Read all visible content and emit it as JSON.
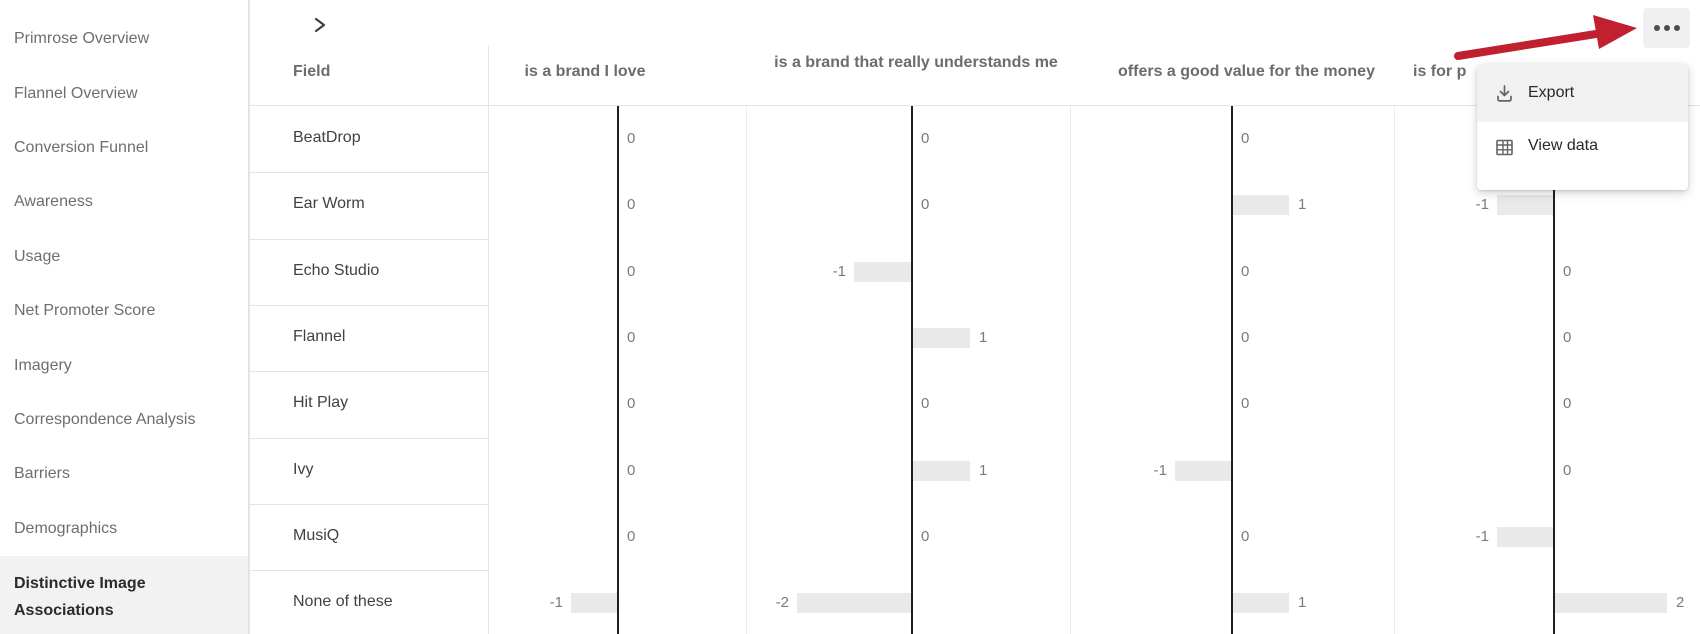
{
  "sidebar": {
    "items": [
      {
        "label": "Primrose Overview",
        "selected": false
      },
      {
        "label": "Flannel Overview",
        "selected": false
      },
      {
        "label": "Conversion Funnel",
        "selected": false
      },
      {
        "label": "Awareness",
        "selected": false
      },
      {
        "label": "Usage",
        "selected": false
      },
      {
        "label": "Net Promoter Score",
        "selected": false
      },
      {
        "label": "Imagery",
        "selected": false
      },
      {
        "label": "Correspondence Analysis",
        "selected": false
      },
      {
        "label": "Barriers",
        "selected": false
      },
      {
        "label": "Demographics",
        "selected": false
      },
      {
        "label": "Distinctive Image Associations",
        "selected": true
      }
    ]
  },
  "toolbar": {
    "collapse_chevron_icon": "chevron-right",
    "overflow_menu_icon": "ellipsis"
  },
  "menu": {
    "items": [
      {
        "label": "Export",
        "icon": "download-icon",
        "highlighted": true
      },
      {
        "label": "View data",
        "icon": "table-icon",
        "highlighted": false
      }
    ]
  },
  "chart_data": {
    "type": "bar",
    "orientation": "horizontal",
    "title": "Distinctive Image Associations",
    "field_header": "Field",
    "columns": [
      "is a brand I love",
      "is a brand that really understands me",
      "offers a good value for the money",
      "is for p"
    ],
    "rows": [
      {
        "label": "BeatDrop",
        "values": [
          0,
          0,
          0,
          null
        ]
      },
      {
        "label": "Ear Worm",
        "values": [
          0,
          0,
          1,
          -1
        ]
      },
      {
        "label": "Echo Studio",
        "values": [
          0,
          -1,
          0,
          0
        ]
      },
      {
        "label": "Flannel",
        "values": [
          0,
          1,
          0,
          0
        ]
      },
      {
        "label": "Hit Play",
        "values": [
          0,
          0,
          0,
          0
        ]
      },
      {
        "label": "Ivy",
        "values": [
          0,
          1,
          -1,
          0
        ]
      },
      {
        "label": "MusiQ",
        "values": [
          0,
          0,
          0,
          -1
        ]
      },
      {
        "label": "None of these",
        "values": [
          -1,
          -2,
          1,
          2
        ]
      }
    ],
    "value_range": [
      -2,
      2
    ],
    "note_hidden_cell": "BeatDrop last column hidden behind open menu"
  },
  "colors": {
    "accent_red": "#c1202f",
    "bar_fill": "#e9e9e9",
    "highlight_bg": "#f2f2f2",
    "axis": "#1f1f1f",
    "divider": "#e4e4e4"
  }
}
